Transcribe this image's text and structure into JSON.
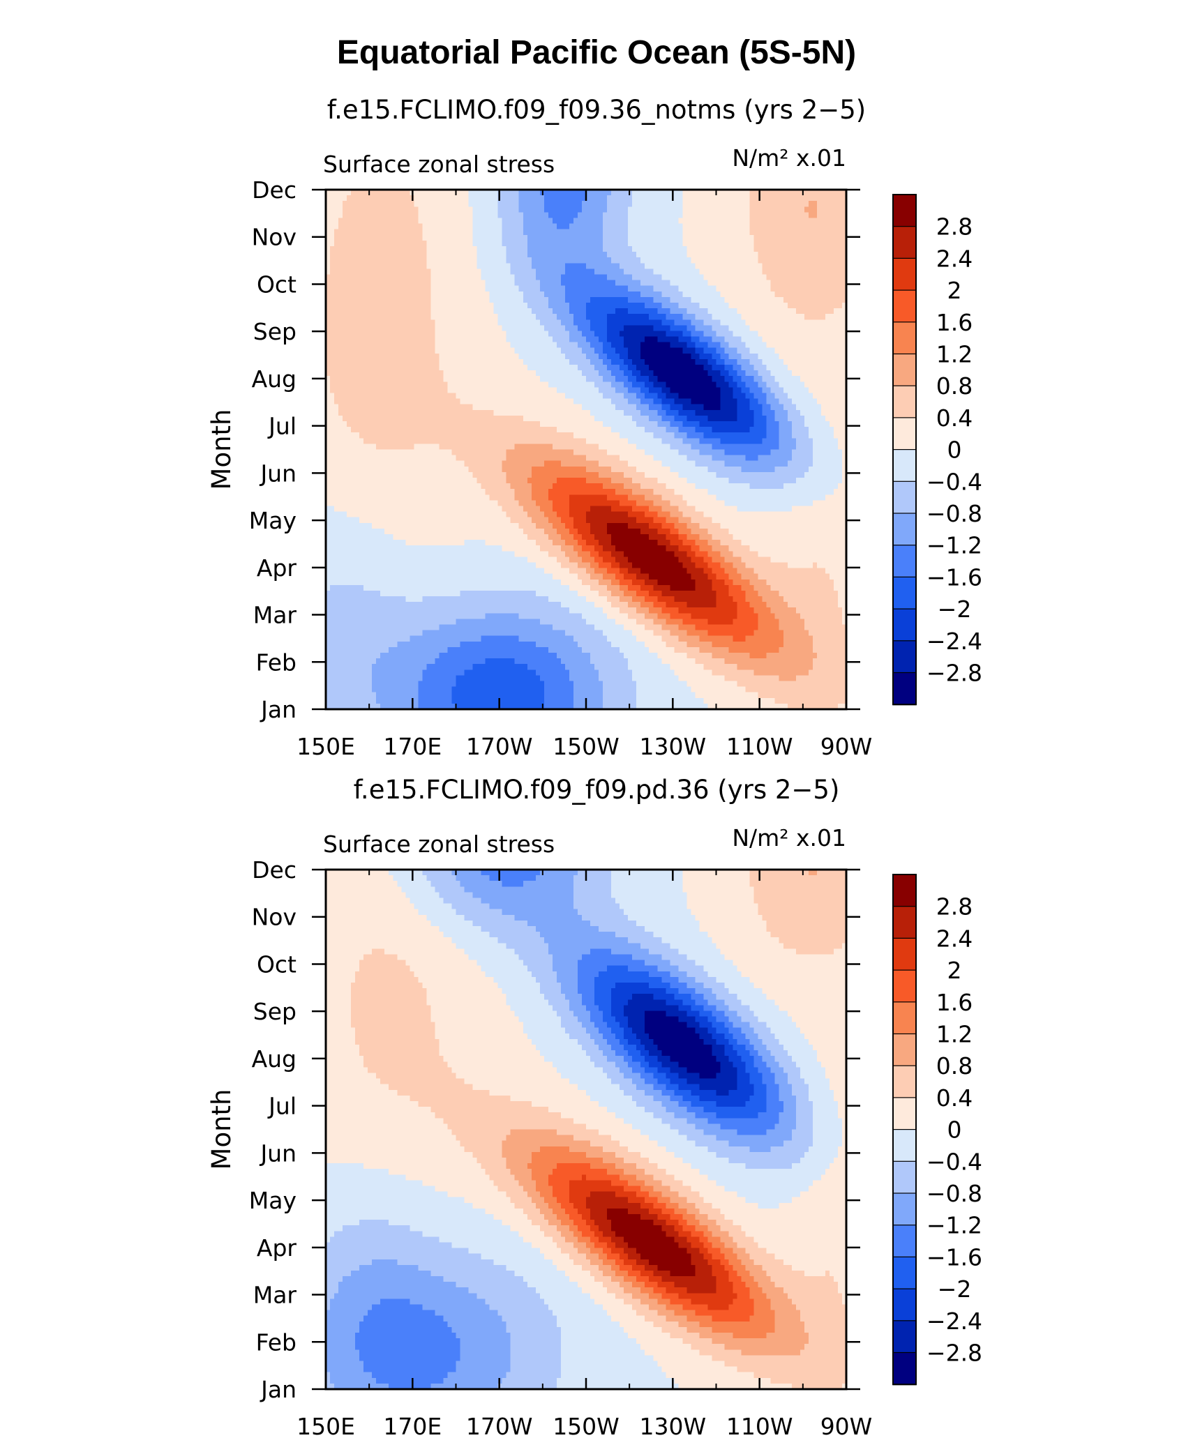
{
  "title": "Equatorial Pacific Ocean (5S-5N)",
  "colors": [
    "#000080",
    "#0023b0",
    "#0a40d8",
    "#2060f0",
    "#4a80fa",
    "#80a8fa",
    "#b0c8fa",
    "#d8e8fa",
    "#feeadc",
    "#fdcdb4",
    "#f8a880",
    "#f88450",
    "#f85a28",
    "#e03a10",
    "#b82008",
    "#880000"
  ],
  "chart_data": [
    {
      "type": "heatmap",
      "title": "f.e15.FCLIMO.f09_f09.36_notms (yrs 2−5)",
      "variable": "Surface zonal stress",
      "units": "N/m² x.01",
      "xlabel": "",
      "ylabel": "Month",
      "x_ticks": [
        "150E",
        "170E",
        "170W",
        "150W",
        "130W",
        "110W",
        "90W"
      ],
      "y_ticks": [
        "Jan",
        "Feb",
        "Mar",
        "Apr",
        "May",
        "Jun",
        "Jul",
        "Aug",
        "Sep",
        "Oct",
        "Nov",
        "Dec"
      ],
      "colorbar_labels": [
        "2.8",
        "2.4",
        "2",
        "1.6",
        "1.2",
        "0.8",
        "0.4",
        "0",
        "−0.4",
        "−0.8",
        "−1.2",
        "−1.6",
        "−2",
        "−2.4",
        "−2.8"
      ],
      "features": [
        {
          "lon": 225,
          "month": 3.2,
          "value": 3.2,
          "sx": 20,
          "sy": 0.85,
          "tilt": -0.058
        },
        {
          "lon": 232,
          "month": 7.1,
          "value": -3.3,
          "sx": 17,
          "sy": 0.85,
          "tilt": -0.058
        },
        {
          "lon": 190,
          "month": 0.3,
          "value": -1.9,
          "sx": 18,
          "sy": 1.3,
          "tilt": 0
        },
        {
          "lon": 162,
          "month": 8.0,
          "value": 0.6,
          "sx": 14,
          "sy": 4.0,
          "tilt": 0.02
        },
        {
          "lon": 262,
          "month": 10.6,
          "value": 0.8,
          "sx": 12,
          "sy": 1.8,
          "tilt": 0
        },
        {
          "lon": 205,
          "month": 11.3,
          "value": -1.4,
          "sx": 10,
          "sy": 1.4,
          "tilt": 0
        },
        {
          "lon": 265,
          "month": 3.3,
          "value": 0.4,
          "sx": 10,
          "sy": 2.5,
          "tilt": 0
        },
        {
          "lon": 155,
          "month": 2.0,
          "value": -0.6,
          "sx": 12,
          "sy": 2.0,
          "tilt": 0
        }
      ]
    },
    {
      "type": "heatmap",
      "title": "f.e15.FCLIMO.f09_f09.pd.36 (yrs 2−5)",
      "variable": "Surface zonal stress",
      "units": "N/m² x.01",
      "xlabel": "",
      "ylabel": "Month",
      "x_ticks": [
        "150E",
        "170E",
        "170W",
        "150W",
        "130W",
        "110W",
        "90W"
      ],
      "y_ticks": [
        "Jan",
        "Feb",
        "Mar",
        "Apr",
        "May",
        "Jun",
        "Jul",
        "Aug",
        "Sep",
        "Oct",
        "Nov",
        "Dec"
      ],
      "colorbar_labels": [
        "2.8",
        "2.4",
        "2",
        "1.6",
        "1.2",
        "0.8",
        "0.4",
        "0",
        "−0.4",
        "−0.8",
        "−1.2",
        "−1.6",
        "−2",
        "−2.4",
        "−2.8"
      ],
      "features": [
        {
          "lon": 225,
          "month": 3.1,
          "value": 3.2,
          "sx": 20,
          "sy": 0.85,
          "tilt": -0.058
        },
        {
          "lon": 232,
          "month": 7.3,
          "value": -3.2,
          "sx": 17,
          "sy": 0.95,
          "tilt": -0.058
        },
        {
          "lon": 175,
          "month": 0.8,
          "value": -1.2,
          "sx": 20,
          "sy": 1.5,
          "tilt": 0
        },
        {
          "lon": 190,
          "month": 11.5,
          "value": -1.5,
          "sx": 16,
          "sy": 1.2,
          "tilt": 0
        },
        {
          "lon": 165,
          "month": 8.0,
          "value": 0.5,
          "sx": 15,
          "sy": 4.0,
          "tilt": 0.02
        },
        {
          "lon": 262,
          "month": 11.0,
          "value": 0.8,
          "sx": 12,
          "sy": 1.5,
          "tilt": 0
        },
        {
          "lon": 160,
          "month": 2.2,
          "value": -0.6,
          "sx": 12,
          "sy": 2.2,
          "tilt": 0
        },
        {
          "lon": 268,
          "month": 3.5,
          "value": 0.4,
          "sx": 8,
          "sy": 2.5,
          "tilt": 0
        }
      ]
    }
  ]
}
